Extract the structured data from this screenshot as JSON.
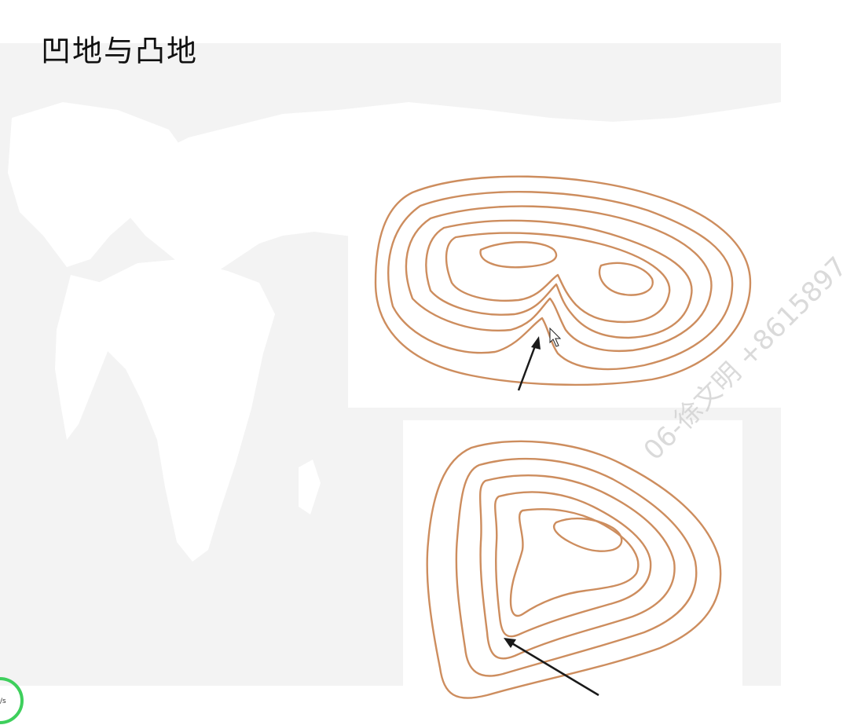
{
  "slide": {
    "title": "凹地与凸地"
  },
  "widgets": {
    "speed_label": "/s"
  },
  "watermark": {
    "text": "06-徐文明 +8615897"
  },
  "colors": {
    "background": "#ffffff",
    "map_band": "#f3f3f3",
    "continents": "#ffffff",
    "contour_line": "#cd8d5e",
    "arrow": "#1a1a1a",
    "speed_ring": "#3ecf5c"
  }
}
